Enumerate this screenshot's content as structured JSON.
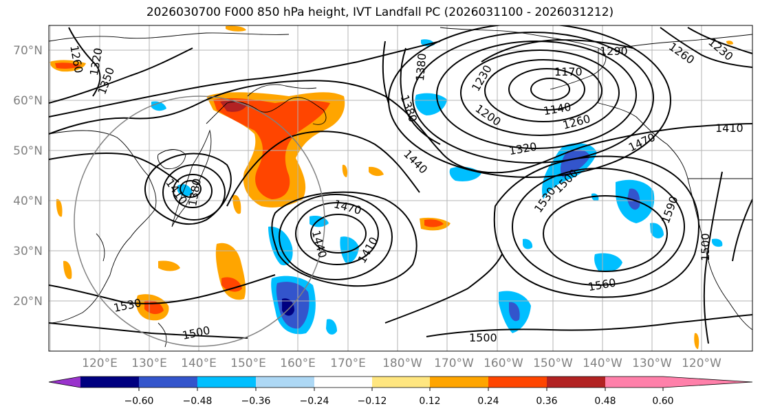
{
  "title": "2026030700 F000 850 hPa height, IVT Landfall PC (2026031100 - 2026031212)",
  "lat_ticks": [
    "70°N",
    "60°N",
    "50°N",
    "40°N",
    "30°N",
    "20°N"
  ],
  "lon_ticks": [
    "120°E",
    "130°E",
    "140°E",
    "150°E",
    "160°E",
    "170°E",
    "180°W",
    "170°W",
    "160°W",
    "150°W",
    "140°W",
    "130°W",
    "120°W"
  ],
  "contour_labels": [
    "1260",
    "1320",
    "1350",
    "1380",
    "1380",
    "1230",
    "1170",
    "1290",
    "1260",
    "1230",
    "1200",
    "1140",
    "1260",
    "1320",
    "1410",
    "1470",
    "1440",
    "1470",
    "1440",
    "1410",
    "1530",
    "1500",
    "1590",
    "1500",
    "1560",
    "1500",
    "1530",
    "1500",
    "1410",
    "1380"
  ],
  "colorbar": {
    "ticks": [
      "−0.60",
      "−0.48",
      "−0.36",
      "−0.24",
      "−0.12",
      "0.12",
      "0.24",
      "0.36",
      "0.48",
      "0.60"
    ],
    "colors": [
      "#9933cc",
      "#000080",
      "#3355cc",
      "#00bfff",
      "#add8f5",
      "#ffffff",
      "#ffe680",
      "#ffa500",
      "#ff4500",
      "#b22222",
      "#ff80aa"
    ]
  }
}
